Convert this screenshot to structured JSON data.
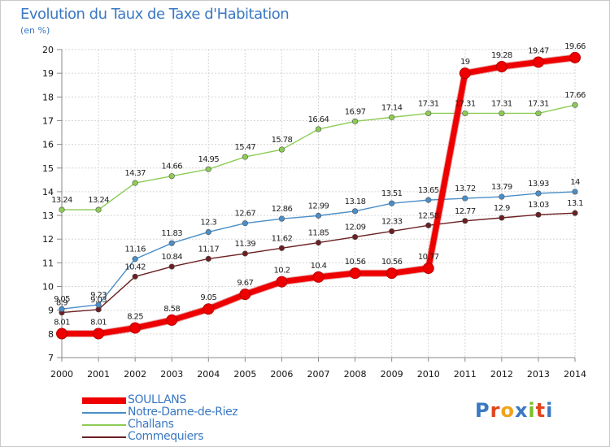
{
  "title": "Evolution du Taux de Taxe d'Habitation",
  "unit_label": "(en %)",
  "logo": {
    "text": "Proxiti",
    "letters": [
      {
        "ch": "P",
        "color": "#3a78c2"
      },
      {
        "ch": "r",
        "color": "#e2451d"
      },
      {
        "ch": "o",
        "color": "#f0a31a"
      },
      {
        "ch": "x",
        "color": "#3a78c2"
      },
      {
        "ch": "i",
        "color": "#7cbd2a"
      },
      {
        "ch": "t",
        "color": "#e2451d"
      },
      {
        "ch": "i",
        "color": "#3a78c2"
      }
    ]
  },
  "chart_data": {
    "type": "line",
    "title": "Evolution du Taux de Taxe d'Habitation",
    "ylabel": "(en %)",
    "xlabel": "",
    "ylim": [
      7,
      20
    ],
    "yticks": [
      7,
      8,
      9,
      10,
      11,
      12,
      13,
      14,
      15,
      16,
      17,
      18,
      19,
      20
    ],
    "grid": true,
    "legend_position": "bottom-left",
    "x": [
      2000,
      2001,
      2002,
      2003,
      2004,
      2005,
      2006,
      2007,
      2008,
      2009,
      2010,
      2011,
      2012,
      2013,
      2014
    ],
    "series": [
      {
        "name": "Commequiers",
        "color": "#6b1f22",
        "values": [
          8.9,
          9.03,
          10.42,
          10.84,
          11.17,
          11.39,
          11.62,
          11.85,
          12.09,
          12.33,
          12.58,
          12.77,
          12.9,
          13.03,
          13.1
        ],
        "labels": [
          "8.9",
          "9.03",
          "10.42",
          "10.84",
          "11.17",
          "11.39",
          "11.62",
          "11.85",
          "12.09",
          "12.33",
          "12.58",
          "12.77",
          "12.9",
          "13.03",
          "13.1"
        ]
      },
      {
        "name": "Notre-Dame-de-Riez",
        "color": "#4a8ec8",
        "values": [
          9.05,
          9.23,
          11.16,
          11.83,
          12.3,
          12.67,
          12.86,
          12.99,
          13.18,
          13.51,
          13.65,
          13.72,
          13.79,
          13.93,
          14.0
        ],
        "labels": [
          "9.05",
          "9.23",
          "11.16",
          "11.83",
          "12.3",
          "12.67",
          "12.86",
          "12.99",
          "13.18",
          "13.51",
          "13.65",
          "13.72",
          "13.79",
          "13.93",
          "14"
        ]
      },
      {
        "name": "Challans",
        "color": "#8ccc55",
        "values": [
          13.24,
          13.24,
          14.37,
          14.66,
          14.95,
          15.47,
          15.78,
          16.64,
          16.97,
          17.14,
          17.31,
          17.31,
          17.31,
          17.31,
          17.66
        ],
        "labels": [
          "13.24",
          "13.24",
          "14.37",
          "14.66",
          "14.95",
          "15.47",
          "15.78",
          "16.64",
          "16.97",
          "17.14",
          "17.31",
          "17.31",
          "17.31",
          "17.31",
          "17.66"
        ]
      },
      {
        "name": "SOULLANS",
        "color": "#ee0000",
        "values": [
          8.01,
          8.01,
          8.25,
          8.58,
          9.05,
          9.67,
          10.2,
          10.4,
          10.56,
          10.56,
          10.77,
          19.0,
          19.28,
          19.47,
          19.66
        ],
        "labels": [
          "8.01",
          "8.01",
          "8.25",
          "8.58",
          "9.05",
          "9.67",
          "10.2",
          "10.4",
          "10.56",
          "10.56",
          "10.77",
          "19",
          "19.28",
          "19.47",
          "19.66"
        ]
      }
    ],
    "legend_order": [
      "SOULLANS",
      "Notre-Dame-de-Riez",
      "Challans",
      "Commequiers"
    ]
  }
}
